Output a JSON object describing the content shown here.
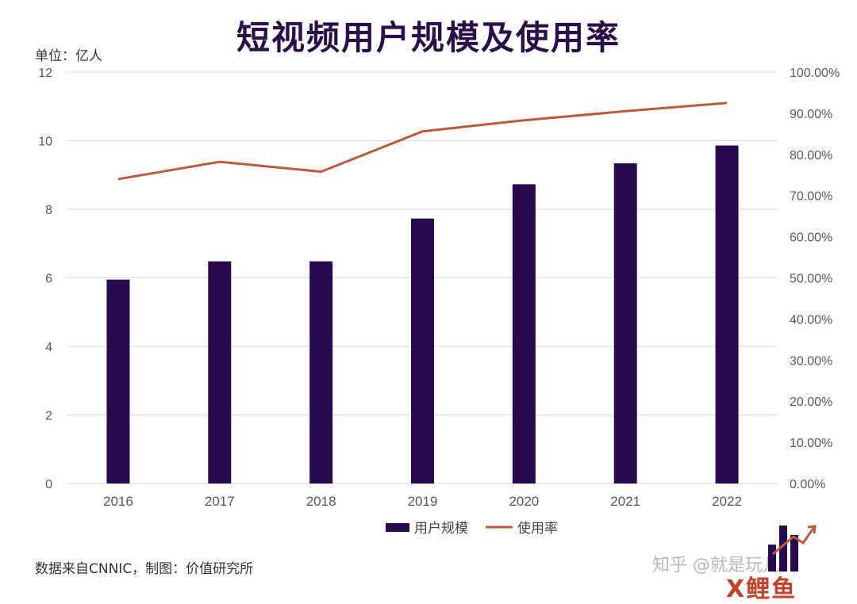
{
  "title": "短视频用户规模及使用率",
  "unit_label": "单位：亿人",
  "source": "数据来自CNNIC，制图：价值研究所",
  "watermark": "知乎 @就是玩儿",
  "logo_text": "X鲤鱼",
  "colors": {
    "bar": "#270a4f",
    "line": "#c0593a",
    "grid": "#d9d9d9",
    "title": "#2a0f4a"
  },
  "chart_data": {
    "type": "bar",
    "categories": [
      "2016",
      "2017",
      "2018",
      "2019",
      "2020",
      "2021",
      "2022"
    ],
    "series": [
      {
        "name": "用户规模",
        "type": "bar",
        "axis": "left",
        "values": [
          5.95,
          6.48,
          6.48,
          7.73,
          8.73,
          9.34,
          9.86
        ]
      },
      {
        "name": "使用率",
        "type": "line",
        "axis": "right",
        "values": [
          74.0,
          78.2,
          75.8,
          85.6,
          88.3,
          90.5,
          92.5
        ]
      }
    ],
    "y_left": {
      "min": 0,
      "max": 12,
      "ticks": [
        "0",
        "2",
        "4",
        "6",
        "8",
        "10",
        "12"
      ]
    },
    "y_right": {
      "min": 0,
      "max": 100,
      "ticks": [
        "0.00%",
        "10.00%",
        "20.00%",
        "30.00%",
        "40.00%",
        "50.00%",
        "60.00%",
        "70.00%",
        "80.00%",
        "90.00%",
        "100.00%"
      ]
    },
    "grid": true,
    "legend_position": "bottom"
  }
}
